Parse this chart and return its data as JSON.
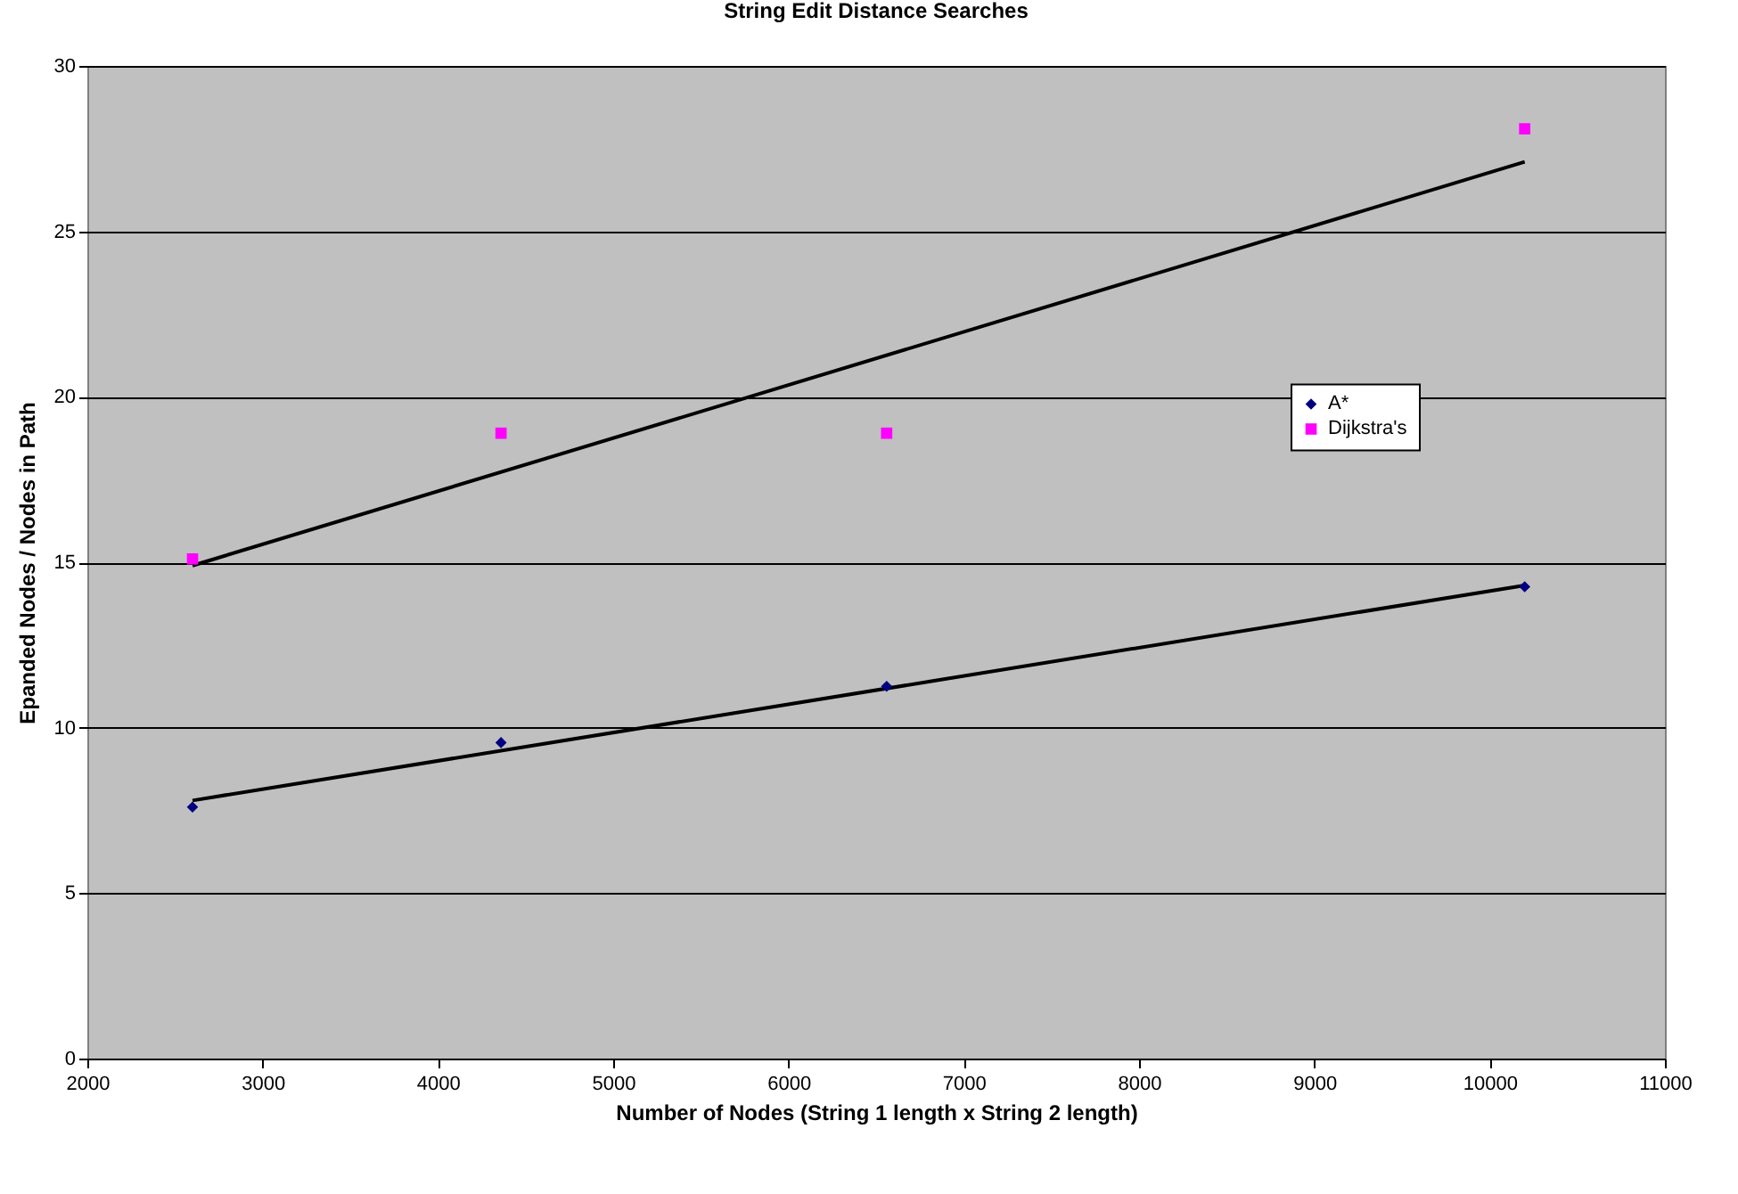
{
  "chart_data": {
    "type": "scatter",
    "title": "String Edit Distance Searches",
    "xlabel": "Number of Nodes (String 1 length x String 2 length)",
    "ylabel": "Epanded Nodes / Nodes in Path",
    "xlim": [
      2000,
      11000
    ],
    "xticks": [
      2000,
      3000,
      4000,
      5000,
      6000,
      7000,
      8000,
      9000,
      10000,
      11000
    ],
    "ylim": [
      0,
      30
    ],
    "yticks": [
      0,
      5,
      10,
      15,
      20,
      25,
      30
    ],
    "grid": "y",
    "legend": "right",
    "series": [
      {
        "name": "A*",
        "color": "#000080",
        "marker": "diamond",
        "x": [
          2600,
          4360,
          6560,
          10200
        ],
        "values": [
          7.6,
          9.55,
          11.25,
          14.26
        ]
      },
      {
        "name": "Dijkstra's",
        "color": "#ff00ff",
        "marker": "square",
        "x": [
          2600,
          4360,
          6560,
          10200
        ],
        "values": [
          15.1,
          18.9,
          18.9,
          28.1
        ]
      },
      {
        "type": "line",
        "color": "#000000",
        "x": [
          2600,
          10200
        ],
        "values": [
          7.8,
          14.3
        ]
      },
      {
        "type": "line",
        "color": "#000000",
        "x": [
          2600,
          10200
        ],
        "values": [
          14.9,
          27.1
        ]
      }
    ]
  }
}
